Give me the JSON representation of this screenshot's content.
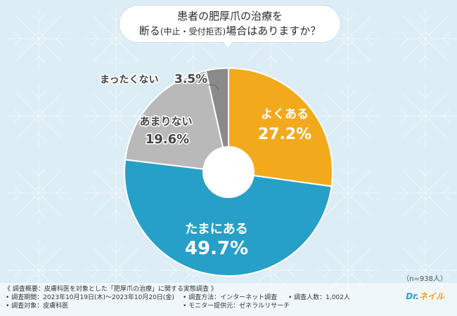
{
  "title": {
    "line1": "患者の肥厚爪の治療を",
    "line2_a": "断る",
    "line2_b": "(中止・受付拒否)",
    "line2_c": "場合はありますか？"
  },
  "sample_note": "（n=938人）",
  "footer": {
    "overview": "《 調査概要：皮膚科医を対象とした「肥厚爪の治療」に関する実態調査 》",
    "period": "• 調査期間：2023年10月19日(木)～2023年10月20日(金)",
    "method": "• 調査方法：インターネット調査",
    "count": "• 調査人数：1,002人",
    "target": "• 調査対象：皮膚科医",
    "provider": "• モニター提供元：ゼネラルリサーチ"
  },
  "logo": {
    "text_a": "Dr.",
    "text_b": "ネイル"
  },
  "colors": {
    "often": "#f2aa1c",
    "sometimes": "#27a0c9",
    "rarely": "#b9b9b9",
    "never": "#8a8a8a",
    "background": "#dcedf5"
  },
  "chart_data": {
    "type": "pie",
    "donut": true,
    "start": "top",
    "direction": "clockwise",
    "slices": [
      {
        "label": "よくある",
        "value": 27.2,
        "display": "27.2%",
        "color": "#f2aa1c",
        "label_color": "#ffffff"
      },
      {
        "label": "たまにある",
        "value": 49.7,
        "display": "49.7%",
        "color": "#27a0c9",
        "label_color": "#ffffff"
      },
      {
        "label": "あまりない",
        "value": 19.6,
        "display": "19.6%",
        "color": "#b9b9b9",
        "label_color": "#444444"
      },
      {
        "label": "まったくない",
        "value": 3.5,
        "display": "3.5%",
        "color": "#8a8a8a",
        "label_color": "#444444"
      }
    ]
  }
}
